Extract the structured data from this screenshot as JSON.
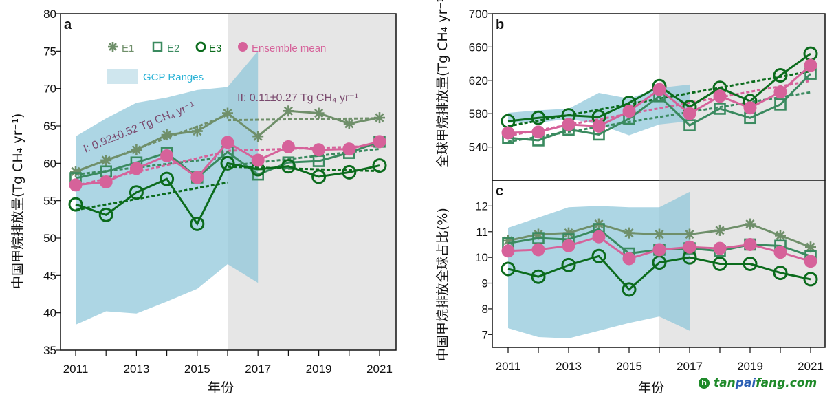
{
  "chart_data": [
    {
      "id": "a",
      "type": "line",
      "panel_label": "a",
      "title": "",
      "xlabel": "年份",
      "ylabel": "中国甲烷排放量 (Tg CH4 yr-1)",
      "ylim": [
        35,
        80
      ],
      "xlim": [
        2010.5,
        2021.5
      ],
      "yticks": [
        35,
        40,
        45,
        50,
        55,
        60,
        65,
        70,
        75,
        80
      ],
      "xticks": [
        2011,
        2012,
        2013,
        2014,
        2015,
        2016,
        2017,
        2018,
        2019,
        2020,
        2021
      ],
      "xtick_labels": [
        "2011",
        "",
        "2013",
        "",
        "2015",
        "",
        "2017",
        "",
        "2019",
        "",
        "2021"
      ],
      "x": [
        2011,
        2012,
        2013,
        2014,
        2015,
        2016,
        2017,
        2018,
        2019,
        2020,
        2021
      ],
      "shaded_period": [
        2016,
        2021.5
      ],
      "gcp_range": {
        "x": [
          2011,
          2012,
          2013,
          2014,
          2015,
          2016,
          2017
        ],
        "lower": [
          38.4,
          40.2,
          39.9,
          41.5,
          43.2,
          46.5,
          44.0
        ],
        "upper": [
          63.6,
          66.0,
          68.1,
          68.8,
          69.8,
          70.2,
          75.0
        ]
      },
      "series": [
        {
          "name": "E1",
          "marker": "asterisk",
          "values": [
            58.9,
            60.4,
            61.8,
            63.8,
            64.3,
            66.7,
            63.6,
            67.0,
            66.7,
            65.3,
            66.1
          ]
        },
        {
          "name": "E2",
          "marker": "square",
          "values": [
            58.0,
            58.9,
            60.1,
            61.4,
            58.1,
            61.5,
            58.5,
            60.1,
            60.3,
            61.4,
            62.9
          ]
        },
        {
          "name": "E3",
          "marker": "circle",
          "values": [
            54.5,
            53.1,
            56.1,
            57.9,
            51.9,
            60.0,
            59.2,
            59.6,
            58.2,
            58.8,
            59.7
          ]
        },
        {
          "name": "Ensemble mean",
          "marker": "filled-circle",
          "values": [
            57.1,
            57.5,
            59.3,
            61.0,
            58.1,
            62.8,
            60.4,
            62.2,
            61.8,
            61.9,
            62.9
          ]
        }
      ],
      "trend_periods": [
        [
          2011,
          2016
        ],
        [
          2016,
          2021
        ]
      ],
      "annotations": [
        {
          "label": "I: 0.92±0.52 Tg CH₄ yr⁻¹"
        },
        {
          "label": "II: 0.11±0.27 Tg CH₄ yr⁻¹"
        }
      ],
      "legend": {
        "position": "top-left",
        "entries": [
          "E1",
          "E2",
          "E3",
          "Ensemble mean",
          "GCP Ranges"
        ]
      }
    },
    {
      "id": "b",
      "type": "line",
      "panel_label": "b",
      "xlabel": "",
      "ylabel": "全球甲烷排放量 (Tg CH4 yr-1)",
      "ylim": [
        500,
        700
      ],
      "yticks": [
        540,
        580,
        620,
        660,
        700
      ],
      "x": [
        2011,
        2012,
        2013,
        2014,
        2015,
        2016,
        2017,
        2018,
        2019,
        2020,
        2021
      ],
      "shaded_period": [
        2016,
        2021.5
      ],
      "gcp_range": {
        "x": [
          2011,
          2012,
          2013,
          2014,
          2015,
          2016,
          2017
        ],
        "lower": [
          569,
          569,
          574,
          567,
          554,
          567,
          571
        ],
        "upper": [
          581,
          584,
          586,
          605,
          598,
          611,
          615
        ]
      },
      "series": [
        {
          "name": "E2",
          "marker": "square",
          "values": [
            551,
            548,
            561,
            555,
            574,
            601,
            566,
            586,
            575,
            591,
            628
          ]
        },
        {
          "name": "E3",
          "marker": "circle",
          "values": [
            571,
            575,
            578,
            576,
            593,
            613,
            588,
            611,
            595,
            626,
            652
          ]
        },
        {
          "name": "Ensemble mean",
          "marker": "filled-circle",
          "values": [
            557,
            558,
            567,
            565,
            583,
            609,
            580,
            601,
            587,
            606,
            638
          ]
        }
      ],
      "trend_periods": [
        [
          2011,
          2021
        ]
      ]
    },
    {
      "id": "c",
      "type": "line",
      "panel_label": "c",
      "xlabel": "年份",
      "ylabel": "中国甲烷排放全球占比(%)",
      "ylim": [
        6.5,
        13.0
      ],
      "yticks": [
        7,
        8,
        9,
        10,
        11,
        12
      ],
      "xticks": [
        2011,
        2012,
        2013,
        2014,
        2015,
        2016,
        2017,
        2018,
        2019,
        2020,
        2021
      ],
      "xtick_labels": [
        "2011",
        "",
        "2013",
        "",
        "2015",
        "",
        "2017",
        "",
        "2019",
        "",
        "2021"
      ],
      "x": [
        2011,
        2012,
        2013,
        2014,
        2015,
        2016,
        2017,
        2018,
        2019,
        2020,
        2021
      ],
      "shaded_period": [
        2016,
        2021.5
      ],
      "gcp_range": {
        "x": [
          2011,
          2012,
          2013,
          2014,
          2015,
          2016,
          2017
        ],
        "lower": [
          7.25,
          6.9,
          6.85,
          7.15,
          7.45,
          7.7,
          7.15
        ],
        "upper": [
          11.15,
          11.55,
          11.95,
          12.0,
          11.95,
          11.95,
          12.55
        ]
      },
      "series": [
        {
          "name": "E1",
          "marker": "asterisk",
          "values": [
            10.65,
            10.9,
            10.95,
            11.3,
            10.95,
            10.9,
            10.9,
            11.05,
            11.3,
            10.85,
            10.4
          ]
        },
        {
          "name": "E2",
          "marker": "square",
          "values": [
            10.55,
            10.75,
            10.7,
            11.1,
            10.15,
            10.3,
            10.35,
            10.25,
            10.5,
            10.45,
            10.05
          ]
        },
        {
          "name": "E3",
          "marker": "circle",
          "values": [
            9.55,
            9.25,
            9.7,
            10.05,
            8.75,
            9.8,
            10.0,
            9.75,
            9.75,
            9.4,
            9.15
          ]
        },
        {
          "name": "Ensemble mean",
          "marker": "filled-circle",
          "values": [
            10.25,
            10.3,
            10.45,
            10.8,
            9.95,
            10.3,
            10.4,
            10.35,
            10.5,
            10.2,
            9.85
          ]
        }
      ]
    }
  ],
  "colors": {
    "E1": "#6f8f6a",
    "E2": "#3a8a5f",
    "E3": "#0b6b1c",
    "Ensemble mean": "#d6629a",
    "gcp_fill": "#a9d5e3",
    "gcp_text": "#2bb3d6",
    "shade": "#e6e6e6",
    "annot": "#7a4a6e"
  },
  "labels": {
    "legend_E1": "E1",
    "legend_E2": "E2",
    "legend_E3": "E3",
    "legend_mean": "Ensemble mean",
    "legend_gcp": "GCP Ranges",
    "annot_I": "I: 0.92±0.52 Tg CH₄ yr⁻¹",
    "annot_II": "II: 0.11±0.27 Tg CH₄ yr⁻¹",
    "xlabel": "年份",
    "ylabel_a": "中国甲烷排放量(Tg CH₄ yr⁻¹)",
    "ylabel_b": "全球甲烷排放量(Tg CH₄ yr⁻¹)",
    "ylabel_c": "中国甲烷排放全球占比(%)"
  },
  "watermark": {
    "part1": "tan",
    "part2": "pai",
    "part3": "fang.com",
    "icon": "leaf-logo-icon"
  }
}
